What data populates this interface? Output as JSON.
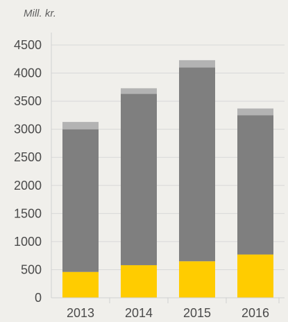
{
  "chart_data": {
    "type": "bar",
    "stacked": true,
    "unit_label": "Mill. kr.",
    "categories": [
      "2013",
      "2014",
      "2015",
      "2016"
    ],
    "series": [
      {
        "color": "#ffcc00",
        "values": [
          460,
          580,
          650,
          770
        ]
      },
      {
        "color": "#7f7f7f",
        "values": [
          2540,
          3050,
          3450,
          2480
        ]
      },
      {
        "color": "#b3b3b3",
        "values": [
          130,
          100,
          130,
          120
        ]
      }
    ],
    "yticks": [
      "0",
      "500",
      "1000",
      "1500",
      "2000",
      "2500",
      "3000",
      "3500",
      "4000",
      "4500"
    ],
    "ylim": [
      0,
      4500
    ],
    "grid": true,
    "legend": "none"
  }
}
